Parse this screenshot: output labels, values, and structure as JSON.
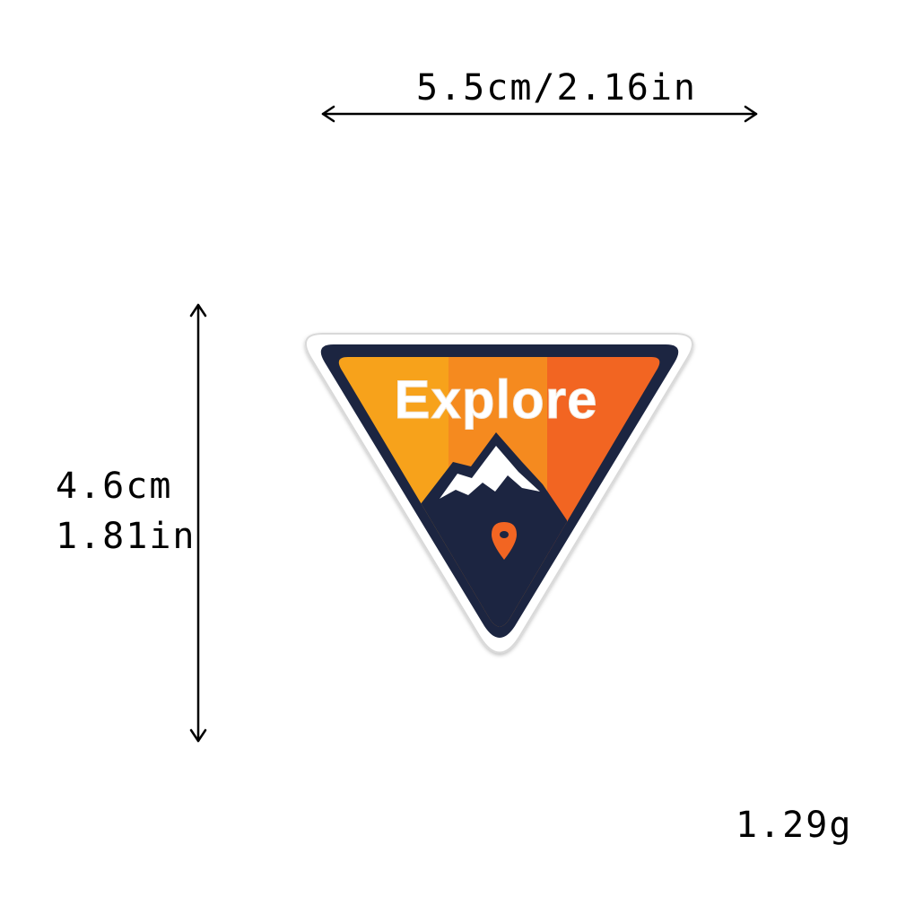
{
  "dimensions": {
    "width_label": "5.5cm/2.16in",
    "height_cm_label": "4.6cm",
    "height_in_label": "1.81in",
    "weight_label": "1.29g"
  },
  "patch": {
    "text": "Explore",
    "colors": {
      "border": "#ffffff",
      "outline": "#1c2541",
      "orange_light": "#f7a21b",
      "orange_mid": "#f58a1f",
      "orange_dark": "#f26522",
      "navy": "#1c2541",
      "snow": "#ffffff",
      "pin": "#f26522"
    },
    "icons": [
      "mountain-icon",
      "location-pin-icon"
    ]
  }
}
